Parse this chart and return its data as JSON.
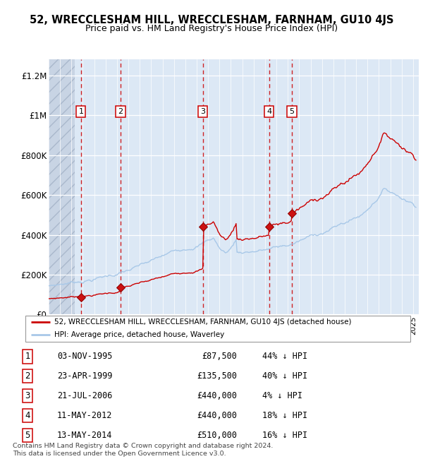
{
  "title": "52, WRECCLESHAM HILL, WRECCLESHAM, FARNHAM, GU10 4JS",
  "subtitle": "Price paid vs. HM Land Registry's House Price Index (HPI)",
  "purchases": [
    {
      "label": "1",
      "date_num": 1995.84,
      "price": 87500,
      "vline_x": 1995.84
    },
    {
      "label": "2",
      "date_num": 1999.31,
      "price": 135500,
      "vline_x": 1999.31
    },
    {
      "label": "3",
      "date_num": 2006.55,
      "price": 440000,
      "vline_x": 2006.55
    },
    {
      "label": "4",
      "date_num": 2012.36,
      "price": 440000,
      "vline_x": 2012.36
    },
    {
      "label": "5",
      "date_num": 2014.36,
      "price": 510000,
      "vline_x": 2014.36
    }
  ],
  "xmin": 1993.0,
  "xmax": 2025.5,
  "ymin": 0,
  "ymax": 1280000,
  "yticks": [
    0,
    200000,
    400000,
    600000,
    800000,
    1000000,
    1200000
  ],
  "ytick_labels": [
    "£0",
    "£200K",
    "£400K",
    "£600K",
    "£800K",
    "£1M",
    "£1.2M"
  ],
  "hpi_color": "#a8c8e8",
  "price_color": "#cc0000",
  "bg_color": "#dce8f5",
  "grid_color": "#ffffff",
  "legend_line1": "52, WRECCLESHAM HILL, WRECCLESHAM, FARNHAM, GU10 4JS (detached house)",
  "legend_line2": "HPI: Average price, detached house, Waverley",
  "table_rows": [
    {
      "num": "1",
      "date": "03-NOV-1995",
      "price": "£87,500",
      "pct": "44% ↓ HPI"
    },
    {
      "num": "2",
      "date": "23-APR-1999",
      "price": "£135,500",
      "pct": "40% ↓ HPI"
    },
    {
      "num": "3",
      "date": "21-JUL-2006",
      "price": "£440,000",
      "pct": "4% ↓ HPI"
    },
    {
      "num": "4",
      "date": "11-MAY-2012",
      "price": "£440,000",
      "pct": "18% ↓ HPI"
    },
    {
      "num": "5",
      "date": "13-MAY-2014",
      "price": "£510,000",
      "pct": "16% ↓ HPI"
    }
  ],
  "footer": "Contains HM Land Registry data © Crown copyright and database right 2024.\nThis data is licensed under the Open Government Licence v3.0.",
  "hatch_xmax": 1995.3,
  "sale_times": [
    1995.84,
    1999.31,
    2006.55,
    2012.36,
    2014.36
  ],
  "sale_prices": [
    87500,
    135500,
    440000,
    440000,
    510000
  ]
}
